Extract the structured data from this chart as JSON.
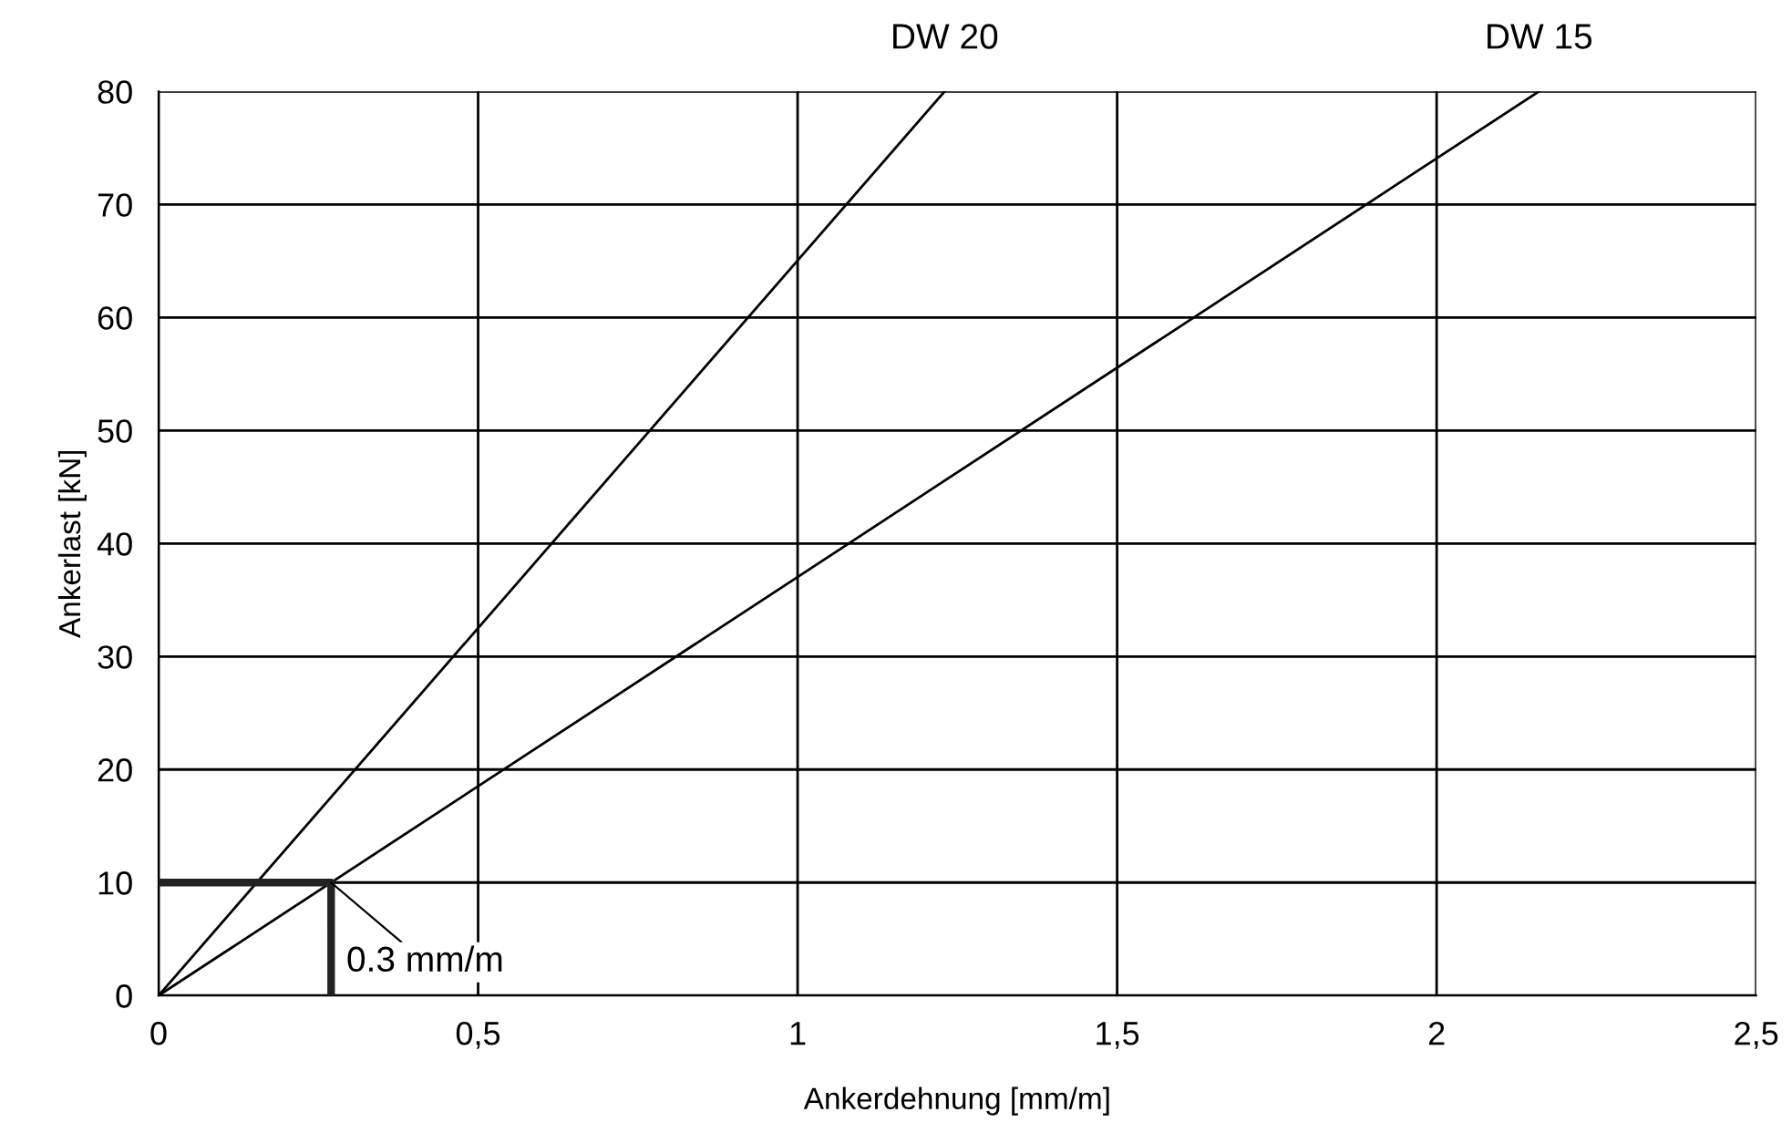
{
  "chart_data": {
    "type": "line",
    "xlabel": "Ankerdehnung [mm/m]",
    "ylabel": "Ankerlast [kN]",
    "series": [
      {
        "name": "DW 20",
        "color": "#000000",
        "x": [
          0,
          1.23
        ],
        "values": [
          0,
          80
        ]
      },
      {
        "name": "DW 15",
        "color": "#000000",
        "x": [
          0,
          2.16
        ],
        "values": [
          0,
          80
        ]
      },
      {
        "color": "#222222",
        "x": [
          0,
          0.27,
          0.27
        ],
        "values": [
          10,
          10,
          0
        ]
      }
    ],
    "annotations": [
      {
        "text": "0.3 mm/m",
        "x": 0.27,
        "y": 10
      }
    ],
    "xlim": [
      0,
      2.5
    ],
    "ylim": [
      0,
      80
    ],
    "xticks": [
      0,
      {
        "value": 0.5,
        "label": "0,5"
      },
      1,
      {
        "value": 1.5,
        "label": "1,5"
      },
      2,
      {
        "value": 2.5,
        "label": "2,5"
      }
    ],
    "yticks": [
      0,
      10,
      20,
      30,
      40,
      50,
      60,
      70,
      80
    ],
    "grid": true,
    "legend": false,
    "marker": "none",
    "line_style": "solid"
  }
}
